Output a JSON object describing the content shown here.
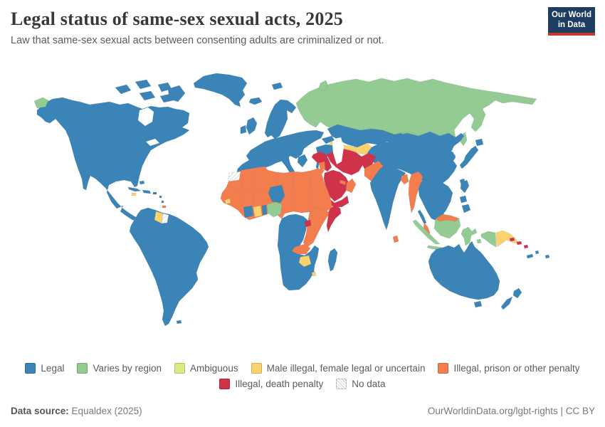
{
  "header": {
    "title": "Legal status of same-sex sexual acts, 2025",
    "subtitle": "Law that same-sex sexual acts between consenting adults are criminalized or not."
  },
  "logo": {
    "line1": "Our World",
    "line2": "in Data",
    "bg_color": "#1d3d63",
    "bar_color": "#c0392b"
  },
  "categories": {
    "legal": {
      "label": "Legal",
      "color": "#3a84b8"
    },
    "varies": {
      "label": "Varies by region",
      "color": "#94cb92"
    },
    "ambiguous": {
      "label": "Ambiguous",
      "color": "#d9eb83"
    },
    "male_illegal": {
      "label": "Male illegal, female legal or uncertain",
      "color": "#fbd26e"
    },
    "illegal_prison": {
      "label": "Illegal, prison or other penalty",
      "color": "#f47d4e"
    },
    "illegal_death": {
      "label": "Illegal, death penalty",
      "color": "#d0324c"
    },
    "no_data": {
      "label": "No data",
      "color": "#ffffff",
      "pattern": "hatch"
    }
  },
  "legend": {
    "row1": [
      "legal",
      "varies",
      "ambiguous",
      "male_illegal",
      "illegal_prison"
    ],
    "row2": [
      "illegal_death",
      "no_data"
    ]
  },
  "chart_data": {
    "type": "choropleth-map",
    "title": "Legal status of same-sex sexual acts, 2025",
    "year": 2025,
    "legend_entries": [
      "Legal",
      "Varies by region",
      "Ambiguous",
      "Male illegal, female legal or uncertain",
      "Illegal, prison or other penalty",
      "Illegal, death penalty",
      "No data"
    ],
    "region_status": {
      "north-america": "Legal",
      "canadian-arctic": "Legal",
      "greenland": "Legal",
      "iceland": "Legal",
      "svalbard": "Legal",
      "chukotka-west": "Varies by region",
      "cuba": "Legal",
      "jamaica": "Male illegal, female legal or uncertain",
      "hispaniola": "Legal",
      "puerto-rico": "Legal",
      "bahamas": "Legal",
      "lesser-antilles": "Legal",
      "trinidad": "Illegal, prison or other penalty",
      "south-america": "Legal",
      "guyana": "Male illegal, female legal or uncertain",
      "suriname": "No data",
      "french-guiana": "Legal",
      "falklands": "Legal",
      "europe-mainland": "Legal",
      "uk": "Legal",
      "ireland": "Legal",
      "scandinavia": "Legal",
      "denmark": "Legal",
      "italy": "Legal",
      "sicily": "Legal",
      "greece": "Legal",
      "caucasus": "Legal",
      "russia": "Varies by region",
      "novaya-zemlya": "Varies by region",
      "sakhalin": "Varies by region",
      "kazakhstan": "Legal",
      "uzbekistan-turkmenistan": "Male illegal, female legal or uncertain",
      "turkey": "Legal",
      "syria-iraq": "Illegal, death penalty",
      "jordan": "Illegal, prison or other penalty",
      "israel": "Legal",
      "iran": "Illegal, death penalty",
      "afghanistan": "Illegal, death penalty",
      "pakistan": "Illegal, prison or other penalty",
      "saudi-arabia": "Illegal, death penalty",
      "yemen": "Illegal, death penalty",
      "oman": "Illegal, prison or other penalty",
      "uae-qatar": "Illegal, prison or other penalty",
      "china": "Legal",
      "korea": "Legal",
      "japan": "Legal",
      "taiwan": "Legal",
      "india": "Legal",
      "sri-lanka": "Illegal, prison or other penalty",
      "bangladesh": "Illegal, prison or other penalty",
      "myanmar": "Illegal, prison or other penalty",
      "indochina": "Legal",
      "thai-peninsula": "Legal",
      "malaysia-peninsular": "Illegal, prison or other penalty",
      "malaysia-borneo": "Illegal, prison or other penalty",
      "borneo-indonesia": "Varies by region",
      "sumatra": "Varies by region",
      "java": "Varies by region",
      "sulawesi": "Varies by region",
      "lesser-sunda": "Varies by region",
      "maluku": "Varies by region",
      "west-papua": "Varies by region",
      "papua-new-guinea": "Male illegal, female legal or uncertain",
      "solomon-islands": "Illegal, death penalty",
      "philippines": "Legal",
      "australia": "Legal",
      "tasmania": "Legal",
      "new-zealand": "Legal",
      "new-caledonia": "Legal",
      "fiji-vanuatu": "Legal",
      "north-africa": "Illegal, prison or other penalty",
      "western-sahara": "No data",
      "niger": "Legal",
      "ivory-coast": "Legal",
      "ghana": "Male illegal, female legal or uncertain",
      "benin-togo": "Legal",
      "nigeria": "Varies by region",
      "guinea-bissau": "Male illegal, female legal or uncertain",
      "east-africa": "Illegal, prison or other penalty",
      "zambia": "Illegal, prison or other penalty",
      "uganda": "Illegal, death penalty",
      "somalia": "Illegal, death penalty",
      "southern-africa": "Legal",
      "zimbabwe": "Male illegal, female legal or uncertain",
      "eswatini": "Male illegal, female legal or uncertain",
      "madagascar": "Legal"
    }
  },
  "map": {
    "ocean_color": "#ffffff",
    "regions": {
      "north-america": "legal",
      "canadian-arctic": "legal",
      "greenland": "legal",
      "iceland": "legal",
      "svalbard": "legal",
      "chukotka-west": "varies",
      "cuba": "legal",
      "jamaica": "male_illegal",
      "hispaniola": "legal",
      "puerto-rico": "legal",
      "bahamas": "legal",
      "lesser-antilles": "legal",
      "trinidad": "illegal_prison",
      "south-america": "legal",
      "guyana": "male_illegal",
      "suriname": "no_data",
      "french-guiana": "legal",
      "falklands": "legal",
      "europe-mainland": "legal",
      "uk": "legal",
      "ireland": "legal",
      "scandinavia": "legal",
      "denmark": "legal",
      "italy": "legal",
      "sicily": "legal",
      "greece": "legal",
      "caucasus": "legal",
      "russia": "varies",
      "novaya-zemlya": "varies",
      "sakhalin": "varies",
      "kazakhstan": "legal",
      "uzbekistan-turkmenistan": "male_illegal",
      "turkey": "legal",
      "syria-iraq": "illegal_death",
      "jordan": "illegal_prison",
      "israel": "legal",
      "iran": "illegal_death",
      "afghanistan": "illegal_death",
      "pakistan": "illegal_prison",
      "saudi-arabia": "illegal_death",
      "yemen": "illegal_death",
      "oman": "illegal_prison",
      "uae-qatar": "illegal_prison",
      "china": "legal",
      "korea": "legal",
      "japan": "legal",
      "taiwan": "legal",
      "india": "legal",
      "sri-lanka": "illegal_prison",
      "bangladesh": "illegal_prison",
      "myanmar": "illegal_prison",
      "indochina": "legal",
      "thai-peninsula": "legal",
      "malaysia-peninsular": "illegal_prison",
      "malaysia-borneo": "illegal_prison",
      "borneo-indonesia": "varies",
      "sumatra": "varies",
      "java": "varies",
      "sulawesi": "varies",
      "lesser-sunda": "varies",
      "maluku": "varies",
      "west-papua": "varies",
      "papua-new-guinea": "male_illegal",
      "solomon-islands": "illegal_death",
      "philippines": "legal",
      "australia": "legal",
      "tasmania": "legal",
      "new-zealand": "legal",
      "new-caledonia": "legal",
      "fiji-vanuatu": "legal",
      "north-africa": "illegal_prison",
      "western-sahara": "no_data",
      "niger": "legal",
      "ivory-coast": "legal",
      "ghana": "male_illegal",
      "benin-togo": "legal",
      "nigeria": "varies",
      "guinea-bissau": "male_illegal",
      "east-africa": "illegal_prison",
      "zambia": "illegal_prison",
      "uganda": "illegal_death",
      "somalia": "illegal_death",
      "southern-africa": "legal",
      "zimbabwe": "male_illegal",
      "eswatini": "male_illegal",
      "madagascar": "legal"
    }
  },
  "footer": {
    "source_label": "Data source:",
    "source_value": " Equaldex (2025)",
    "right": "OurWorldinData.org/lgbt-rights | CC BY"
  }
}
